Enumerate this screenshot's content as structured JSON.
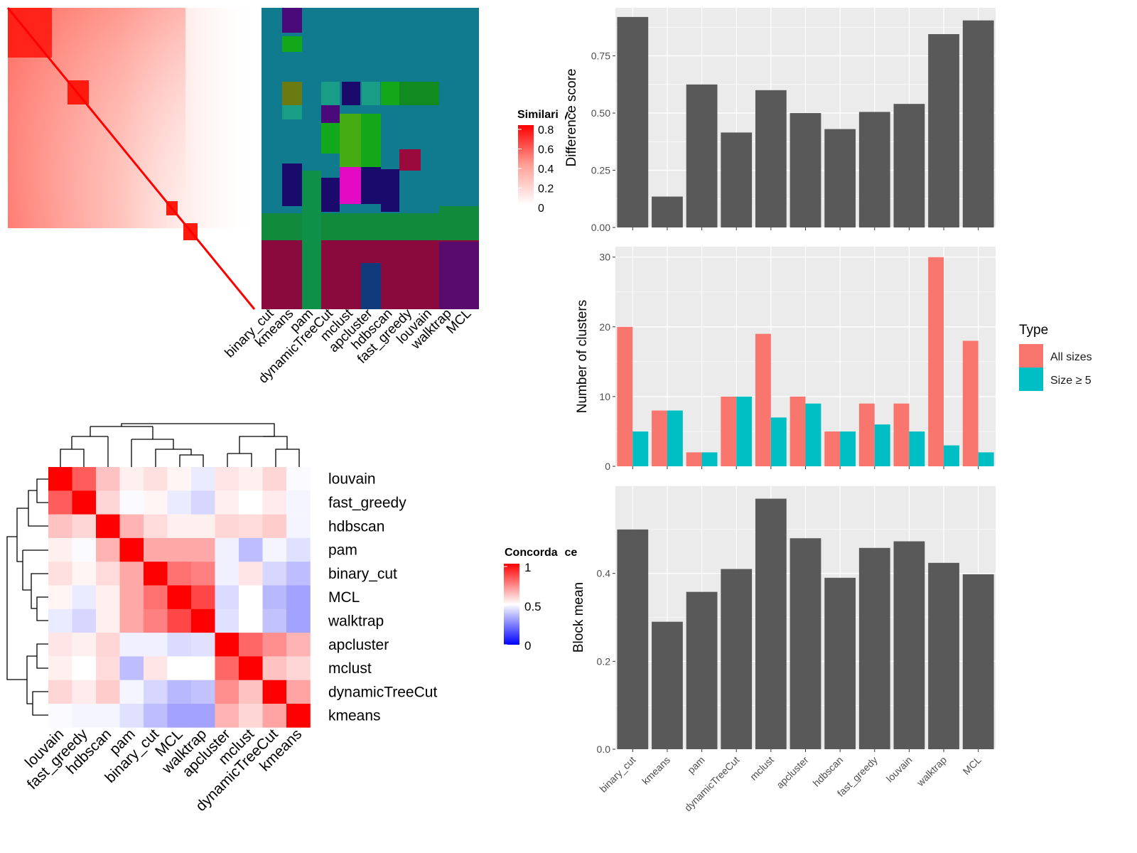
{
  "colors": {
    "panel_bg": "#ebebeb",
    "gridline": "#ffffff",
    "bar_dark": "#595959",
    "all_sizes": "#f8766d",
    "size_ge5": "#00bfc4",
    "sim_high": "#ff0000",
    "conc_low": "#0000ff",
    "conc_mid": "#ffffff",
    "conc_high": "#ff0000"
  },
  "chart_data": [
    {
      "type": "heatmap",
      "legend": {
        "title": "Similarity",
        "ticks": [
          "0.8",
          "0.6",
          "0.4",
          "0.2",
          "0"
        ]
      },
      "method_labels": [
        "binary_cut",
        "kmeans",
        "pam",
        "dynamicTreeCut",
        "mclust",
        "apcluster",
        "hdbscan",
        "fast_greedy",
        "louvain",
        "walktrap",
        "MCL"
      ]
    },
    {
      "type": "heatmap",
      "legend": {
        "title": "Concordance",
        "ticks": [
          "1",
          "0.5",
          "0"
        ]
      },
      "rows": [
        "louvain",
        "fast_greedy",
        "hdbscan",
        "pam",
        "binary_cut",
        "MCL",
        "walktrap",
        "apcluster",
        "mclust",
        "dynamicTreeCut",
        "kmeans"
      ],
      "cols": [
        "louvain",
        "fast_greedy",
        "hdbscan",
        "pam",
        "binary_cut",
        "MCL",
        "walktrap",
        "apcluster",
        "mclust",
        "dynamicTreeCut",
        "kmeans"
      ],
      "values": [
        [
          1.0,
          0.82,
          0.62,
          0.53,
          0.56,
          0.52,
          0.46,
          0.55,
          0.53,
          0.58,
          0.49
        ],
        [
          0.82,
          1.0,
          0.58,
          0.49,
          0.52,
          0.46,
          0.42,
          0.53,
          0.5,
          0.54,
          0.48
        ],
        [
          0.62,
          0.58,
          1.0,
          0.65,
          0.57,
          0.53,
          0.53,
          0.58,
          0.57,
          0.6,
          0.48
        ],
        [
          0.53,
          0.49,
          0.65,
          1.0,
          0.67,
          0.67,
          0.67,
          0.47,
          0.37,
          0.48,
          0.44
        ],
        [
          0.56,
          0.52,
          0.57,
          0.67,
          1.0,
          0.78,
          0.75,
          0.47,
          0.55,
          0.42,
          0.37
        ],
        [
          0.52,
          0.46,
          0.53,
          0.67,
          0.78,
          1.0,
          0.86,
          0.43,
          0.5,
          0.36,
          0.32
        ],
        [
          0.46,
          0.42,
          0.53,
          0.67,
          0.75,
          0.86,
          1.0,
          0.44,
          0.5,
          0.38,
          0.32
        ],
        [
          0.55,
          0.53,
          0.58,
          0.47,
          0.47,
          0.43,
          0.44,
          1.0,
          0.8,
          0.72,
          0.65
        ],
        [
          0.53,
          0.5,
          0.57,
          0.37,
          0.55,
          0.5,
          0.5,
          0.8,
          1.0,
          0.62,
          0.58
        ],
        [
          0.58,
          0.54,
          0.6,
          0.48,
          0.42,
          0.36,
          0.38,
          0.72,
          0.62,
          1.0,
          0.68
        ],
        [
          0.49,
          0.48,
          0.48,
          0.44,
          0.37,
          0.32,
          0.32,
          0.65,
          0.58,
          0.68,
          1.0
        ]
      ]
    },
    {
      "type": "bar",
      "categories": [
        "binary_cut",
        "kmeans",
        "pam",
        "dynamicTreeCut",
        "mclust",
        "apcluster",
        "hdbscan",
        "fast_greedy",
        "louvain",
        "walktrap",
        "MCL"
      ],
      "values": [
        0.92,
        0.135,
        0.625,
        0.415,
        0.6,
        0.5,
        0.43,
        0.505,
        0.54,
        0.845,
        0.905
      ],
      "ylabel": "Difference score",
      "ylim": [
        0,
        0.96
      ],
      "yticks": [
        "0.00",
        "0.25",
        "0.50",
        "0.75"
      ],
      "grid": true
    },
    {
      "type": "bar",
      "categories": [
        "binary_cut",
        "kmeans",
        "pam",
        "dynamicTreeCut",
        "mclust",
        "apcluster",
        "hdbscan",
        "fast_greedy",
        "louvain",
        "walktrap",
        "MCL"
      ],
      "series": [
        {
          "name": "All sizes",
          "values": [
            20,
            8,
            2,
            10,
            19,
            10,
            5,
            9,
            9,
            30,
            18
          ]
        },
        {
          "name": "Size ≥ 5",
          "values": [
            5,
            8,
            2,
            10,
            7,
            9,
            5,
            6,
            5,
            3,
            2
          ]
        }
      ],
      "ylabel": "Number of clusters",
      "ylim": [
        0,
        31.5
      ],
      "yticks": [
        "0",
        "10",
        "20",
        "30"
      ],
      "legend": {
        "title": "Type",
        "position": "right"
      },
      "grid": true
    },
    {
      "type": "bar",
      "categories": [
        "binary_cut",
        "kmeans",
        "pam",
        "dynamicTreeCut",
        "mclust",
        "apcluster",
        "hdbscan",
        "fast_greedy",
        "louvain",
        "walktrap",
        "MCL"
      ],
      "values": [
        0.5,
        0.29,
        0.358,
        0.41,
        0.57,
        0.48,
        0.39,
        0.458,
        0.473,
        0.424,
        0.398
      ],
      "ylabel": "Block mean",
      "ylim": [
        0,
        0.6
      ],
      "yticks": [
        "0.0",
        "0.2",
        "0.4"
      ],
      "grid": true
    }
  ]
}
